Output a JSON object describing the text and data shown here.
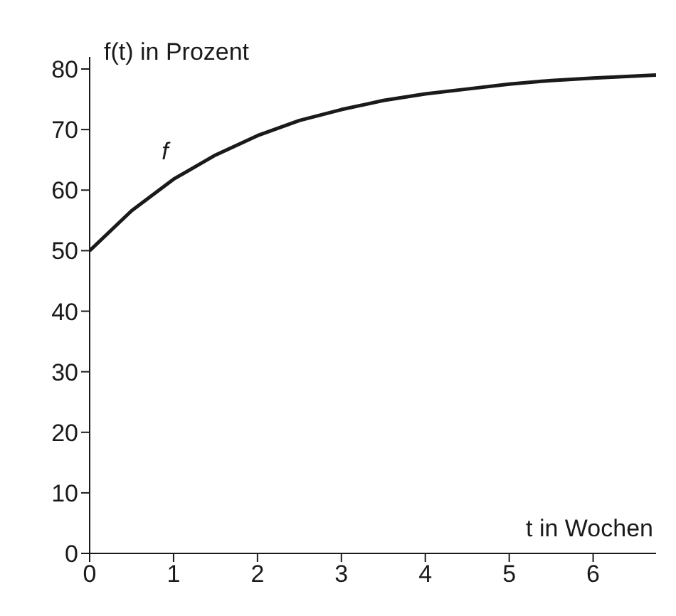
{
  "chart_data": {
    "type": "line",
    "xlabel": "t in Wochen",
    "ylabel": "f(t) in Prozent",
    "x": [
      0,
      0.5,
      1,
      1.5,
      2,
      2.5,
      3,
      3.5,
      4,
      4.5,
      5,
      5.5,
      6,
      6.75
    ],
    "series": [
      {
        "color": "#1a1a1a",
        "values": [
          50,
          56.6,
          61.8,
          65.8,
          69,
          71.5,
          73.3,
          74.8,
          75.9,
          76.7,
          77.5,
          78.1,
          78.5,
          79
        ]
      }
    ],
    "annotations": [
      "f"
    ],
    "xlim": [
      0,
      6.75
    ],
    "ylim": [
      0,
      82
    ],
    "xticks": [
      0,
      1,
      2,
      3,
      4,
      5,
      6
    ],
    "yticks": [
      0,
      10,
      20,
      30,
      40,
      50,
      60,
      70,
      80
    ],
    "grid": false,
    "legend": false,
    "marker": "none",
    "line_style": "solid"
  }
}
